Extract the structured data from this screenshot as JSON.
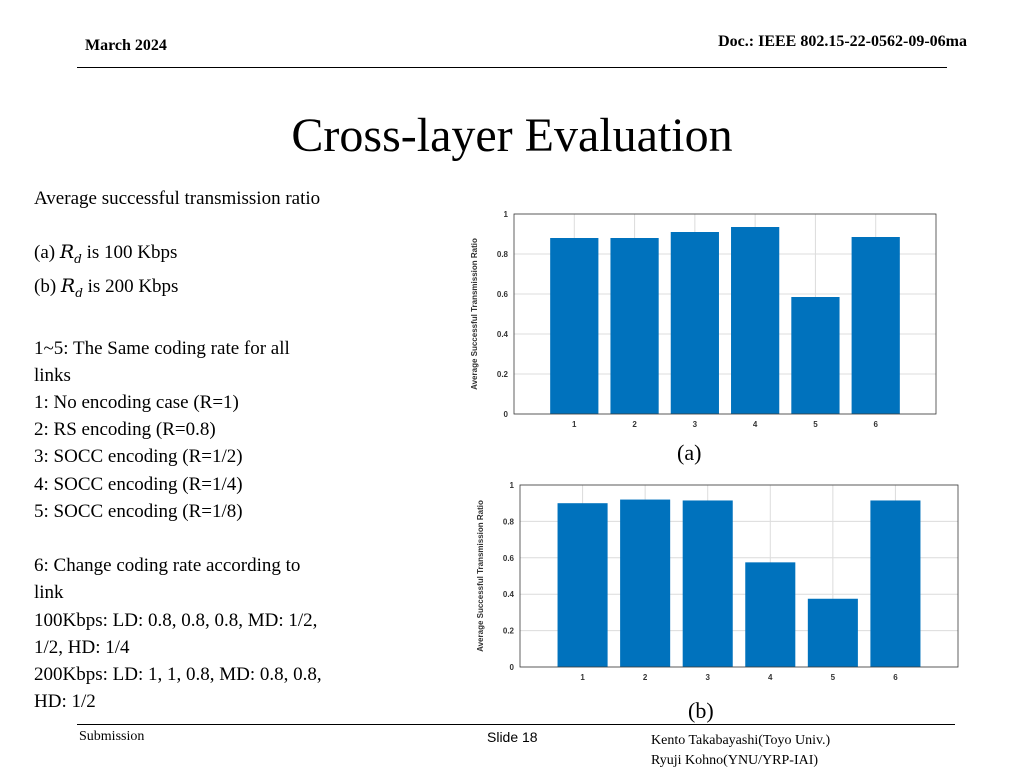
{
  "header": {
    "date": "March 2024",
    "doc": "Doc.: IEEE 802.15-22-0562-09-06ma"
  },
  "slide": {
    "title": "Cross-layer Evaluation"
  },
  "left_text": {
    "heading": "Average successful transmission ratio",
    "a_prefix": "(a) ",
    "a_sym": "R",
    "a_sub": "d",
    "a_suffix": " is 100 Kbps",
    "b_prefix": "(b) ",
    "b_sym": "R",
    "b_sub": "d",
    "b_suffix": " is 200 Kbps",
    "same_rate_1": "1~5: The Same coding rate for all",
    "same_rate_2": "links",
    "case1": "1: No encoding case (R=1)",
    "case2": "2: RS encoding (R=0.8)",
    "case3": "3: SOCC encoding (R=1/2)",
    "case4": "4: SOCC encoding (R=1/4)",
    "case5": "5: SOCC encoding (R=1/8)",
    "change_1": "6: Change coding rate according to",
    "change_2": "link",
    "rate100_1": "100Kbps: LD: 0.8, 0.8, 0.8, MD: 1/2,",
    "rate100_2": "1/2, HD: 1/4",
    "rate200_1": "200Kbps: LD: 1, 1, 0.8, MD: 0.8, 0.8,",
    "rate200_2": "HD: 1/2"
  },
  "captions": {
    "a": "(a)",
    "b": "(b)"
  },
  "footer": {
    "submission": "Submission",
    "slide": "Slide 18",
    "author1": "Kento Takabayashi(Toyo Univ.)",
    "author2": "Ryuji Kohno(YNU/YRP-IAI)"
  },
  "colors": {
    "bar": "#0072BD",
    "grid": "#dcdcdc",
    "axis": "#3a3a3a"
  },
  "chart_data": [
    {
      "type": "bar",
      "ylabel": "Average Successful Transmission Ratio",
      "categories": [
        "1",
        "2",
        "3",
        "4",
        "5",
        "6"
      ],
      "values": [
        0.88,
        0.88,
        0.91,
        0.935,
        0.585,
        0.885
      ],
      "ylim": [
        0,
        1
      ],
      "yticks": [
        "0",
        "0.2",
        "0.4",
        "0.6",
        "0.8",
        "1"
      ],
      "grid": true
    },
    {
      "type": "bar",
      "ylabel": "Average Successful Transmission Ratio",
      "categories": [
        "1",
        "2",
        "3",
        "4",
        "5",
        "6"
      ],
      "values": [
        0.9,
        0.92,
        0.915,
        0.575,
        0.375,
        0.915
      ],
      "ylim": [
        0,
        1
      ],
      "yticks": [
        "0",
        "0.2",
        "0.4",
        "0.6",
        "0.8",
        "1"
      ],
      "grid": true
    }
  ]
}
